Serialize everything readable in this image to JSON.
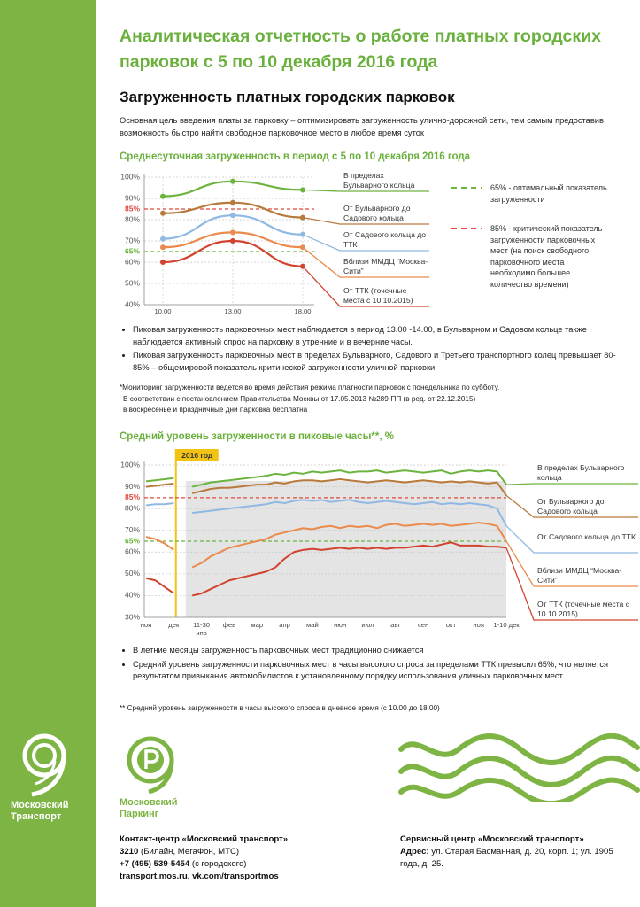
{
  "header": {
    "title": "Аналитическая отчетность о работе платных городских парковок с 5 по 10 декабря 2016 года"
  },
  "section_title": "Загруженность платных городских парковок",
  "intro": "Основная цель введения платы за парковку – оптимизировать загруженность улично-дорожной сети, тем самым предоставив возможность быстро найти свободное парковочное место в любое время суток",
  "chart_data": [
    {
      "type": "line",
      "title": "Среднесуточная загруженность в период с 5 по 10 декабря 2016 года",
      "categories": [
        "10.00",
        "13.00",
        "18.00"
      ],
      "ylim": [
        40,
        100
      ],
      "yticks": [
        {
          "value": 40,
          "label": "40%"
        },
        {
          "value": 50,
          "label": "50%"
        },
        {
          "value": 60,
          "label": "60%"
        },
        {
          "value": 70,
          "label": "70%"
        },
        {
          "value": 80,
          "label": "80%"
        },
        {
          "value": 90,
          "label": "90%"
        },
        {
          "value": 100,
          "label": "100%"
        }
      ],
      "grid": true,
      "markers": true,
      "reference_lines": [
        {
          "value": 85,
          "label": "85%",
          "color": "#e0483a",
          "description": "85% - критический показатель загруженности парковочных мест (на поиск свободного парковочного места необходимо большее количество времени)"
        },
        {
          "value": 65,
          "label": "65%",
          "color": "#6db33f",
          "description": "65% - оптимальный показатель загруженности"
        }
      ],
      "series": [
        {
          "name": "В пределах Бульварного кольца",
          "color": "#6db33f",
          "values": [
            91,
            98,
            94
          ]
        },
        {
          "name": "От Бульварного до Садового кольца",
          "color": "#b87a3c",
          "values": [
            83,
            88,
            81
          ]
        },
        {
          "name": "От Садового кольца до ТТК",
          "color": "#8fb9e2",
          "values": [
            71,
            82,
            73
          ]
        },
        {
          "name": "Вблизи ММДЦ “Москва-Сити”",
          "color": "#ea8a4c",
          "values": [
            67,
            74,
            67
          ]
        },
        {
          "name": "От ТТК (точечные места с 10.10.2015)",
          "color": "#d2432f",
          "values": [
            60,
            70,
            58
          ]
        }
      ]
    },
    {
      "type": "line",
      "title": "Средний уровень загруженности в пиковые часы**, %",
      "marker_label": "2016 год",
      "categories": [
        "ноя",
        null,
        null,
        "дек",
        null,
        null,
        "11-30 янв",
        null,
        null,
        "фев",
        null,
        null,
        "мар",
        null,
        null,
        "апр",
        null,
        null,
        "май",
        null,
        null,
        "июн",
        null,
        null,
        "июл",
        null,
        null,
        "авг",
        null,
        null,
        "сен",
        null,
        null,
        "окт",
        null,
        null,
        "ноя",
        null,
        null,
        "1-10 дек"
      ],
      "ylim": [
        30,
        100
      ],
      "yticks": [
        {
          "value": 30,
          "label": "30%"
        },
        {
          "value": 40,
          "label": "40%"
        },
        {
          "value": 50,
          "label": "50%"
        },
        {
          "value": 60,
          "label": "60%"
        },
        {
          "value": 70,
          "label": "70%"
        },
        {
          "value": 80,
          "label": "80%"
        },
        {
          "value": 90,
          "label": "90%"
        },
        {
          "value": 100,
          "label": "100%"
        }
      ],
      "grid": true,
      "markers": false,
      "reference_lines": [
        {
          "value": 85,
          "label": "85%",
          "color": "#e0483a"
        },
        {
          "value": 65,
          "label": "65%",
          "color": "#6db33f"
        }
      ],
      "series": [
        {
          "name": "В пределах Бульварного кольца",
          "color": "#6db33f",
          "values": [
            92.5,
            93,
            93.5,
            94,
            null,
            90,
            91,
            92,
            92.5,
            93,
            93.5,
            94,
            94.5,
            95,
            96,
            95.5,
            96.5,
            96,
            97,
            96.5,
            97,
            97.5,
            96.5,
            97,
            97,
            97.5,
            96.5,
            97,
            97.5,
            97,
            96.5,
            97,
            97.5,
            96,
            97,
            97.5,
            97,
            97.5,
            97,
            91
          ]
        },
        {
          "name": "От Бульварного до Садового кольца",
          "color": "#b87a3c",
          "values": [
            90,
            90.5,
            91,
            91.5,
            null,
            87,
            88,
            89,
            89.5,
            89.5,
            90,
            90.5,
            91,
            91,
            92,
            91.5,
            92.5,
            93,
            93,
            92.5,
            93,
            93.5,
            93,
            92.5,
            92,
            92.5,
            93,
            92.5,
            92,
            92.5,
            93,
            92.5,
            92,
            92.5,
            92,
            92.5,
            92,
            91.5,
            92,
            86
          ]
        },
        {
          "name": "От Садового кольца до ТТК",
          "color": "#8fb9e2",
          "values": [
            81.5,
            82,
            82,
            82.5,
            null,
            78,
            78.5,
            79,
            79.5,
            80,
            80.5,
            81,
            81.5,
            82,
            83,
            82.5,
            83.5,
            84,
            83.5,
            84,
            83,
            83.5,
            84,
            83,
            82.5,
            83,
            83.5,
            83,
            82.5,
            82,
            82.5,
            83,
            82,
            82.5,
            82,
            82.5,
            82,
            81.5,
            80,
            72
          ]
        },
        {
          "name": "Вблизи ММДЦ “Москва-Сити”",
          "color": "#ea8a4c",
          "values": [
            67,
            66,
            64,
            61,
            null,
            53,
            55,
            58,
            60,
            62,
            63,
            64,
            65,
            66,
            68,
            69,
            70,
            71,
            70.5,
            71.5,
            72,
            71,
            72,
            71.5,
            72,
            71,
            72.5,
            73,
            72,
            72.5,
            73,
            72.5,
            73,
            72,
            72.5,
            73,
            73.5,
            73,
            72,
            65
          ]
        },
        {
          "name": "От ТТК (точечные места с 10.10.2015)",
          "color": "#d2432f",
          "values": [
            48,
            47,
            44,
            41,
            null,
            40,
            41,
            43,
            45,
            47,
            48,
            49,
            50,
            51,
            53,
            57,
            60,
            61,
            61.5,
            61,
            61.5,
            62,
            61.5,
            62,
            61.5,
            62,
            61.5,
            62,
            62,
            62.5,
            63,
            62.5,
            63.5,
            64.5,
            63,
            63,
            63,
            62.5,
            62.5,
            62
          ]
        }
      ]
    }
  ],
  "notes_1": [
    "Пиковая загруженность парковочных мест наблюдается в период 13.00 -14.00, в Бульварном и Садовом кольце также наблюдается активный спрос на парковку в утренние и в вечерние часы.",
    "Пиковая загруженность парковочных мест в пределах Бульварного, Садового и Третьего транспортного колец превышает 80-85% – общемировой показатель критической загруженности уличной парковки."
  ],
  "footnote_1": [
    "*Мониторинг загруженности ведется во время действия режима платности парковок с понедельника по субботу.",
    "В соответствии с постановлением Правительства Москвы от 17.05.2013 №289-ПП (в ред. от 22.12.2015)",
    "в воскресенье и праздничные дни парковка бесплатна"
  ],
  "notes_2": [
    "В летние месяцы загруженность парковочных мест традиционно снижается",
    "Средний уровень загруженности парковочных мест в часы высокого спроса за пределами ТТК превысил 65%, что является результатом привыкания автомобилистов к установленному порядку использования уличных парковочных мест."
  ],
  "footnote_2": "** Средний уровень загруженности в часы высокого спроса в дневное время (с 10.00 до 18.00)",
  "logos": {
    "transport": [
      "Московский",
      "Транспорт"
    ],
    "parking": [
      "Московский",
      "Паркинг"
    ]
  },
  "contacts_left": {
    "title": "Контакт-центр «Московский транспорт»",
    "phone_1": "3210",
    "phone_1_note": "(Билайн, МегаФон, МТС)",
    "phone_2": "+7 (495) 539-5454",
    "phone_2_note": "(с городского)",
    "web": "transport.mos.ru, vk.com/transportmos"
  },
  "contacts_right": {
    "title": "Сервисный центр «Московский транспорт»",
    "address_label": "Адрес:",
    "address": "ул. Старая Басманная, д. 20, корп. 1; ул. 1905 года, д. 25."
  }
}
